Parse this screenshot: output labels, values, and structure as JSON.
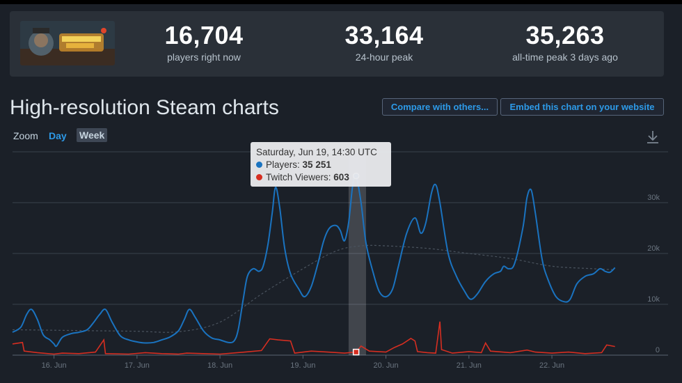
{
  "stats": {
    "current": {
      "value": "16,704",
      "label": "players right now"
    },
    "peak24": {
      "value": "33,164",
      "label": "24-hour peak"
    },
    "alltime": {
      "value": "35,263",
      "label": "all-time peak 3 days ago"
    }
  },
  "heading": "High-resolution Steam charts",
  "buttons": {
    "compare": "Compare with others...",
    "embed": "Embed this chart on your website"
  },
  "zoom": {
    "label": "Zoom",
    "day": "Day",
    "week": "Week"
  },
  "tooltip": {
    "date": "Saturday, Jun 19, 14:30 UTC",
    "players_label": "Players:",
    "players_value": "35 251",
    "twitch_label": "Twitch Viewers:",
    "twitch_value": "603"
  },
  "colors": {
    "players": "#1a73c0",
    "twitch": "#d62e21",
    "average": "#4a535e",
    "highlight": "#ffffff"
  },
  "icons": {
    "download": "download-icon"
  },
  "chart_data": {
    "type": "line",
    "xlim": [
      15.5,
      23.4
    ],
    "ylim": [
      0,
      40000
    ],
    "x_ticks": [
      16,
      17,
      18,
      19,
      20,
      21,
      22
    ],
    "x_tick_labels": [
      "16. Jun",
      "17. Jun",
      "18. Jun",
      "19. Jun",
      "20. Jun",
      "21. Jun",
      "22. Jun"
    ],
    "y_ticks": [
      0,
      10000,
      20000,
      30000
    ],
    "y_tick_labels": [
      "0",
      "10k",
      "20k",
      "30k"
    ],
    "grid": true,
    "highlight": {
      "x": 19.6,
      "x_band": [
        19.55,
        19.76
      ],
      "players": 35251,
      "twitch": 603
    },
    "series": [
      {
        "name": "Players",
        "points": [
          [
            15.5,
            4500
          ],
          [
            15.6,
            5500
          ],
          [
            15.67,
            8000
          ],
          [
            15.73,
            9000
          ],
          [
            15.8,
            7000
          ],
          [
            15.87,
            4000
          ],
          [
            15.95,
            3000
          ],
          [
            16.0,
            2200
          ],
          [
            16.03,
            1800
          ],
          [
            16.1,
            3500
          ],
          [
            16.2,
            4200
          ],
          [
            16.3,
            4500
          ],
          [
            16.4,
            5000
          ],
          [
            16.48,
            6500
          ],
          [
            16.55,
            8000
          ],
          [
            16.62,
            9000
          ],
          [
            16.7,
            6500
          ],
          [
            16.8,
            3800
          ],
          [
            16.9,
            3000
          ],
          [
            17.0,
            2600
          ],
          [
            17.1,
            2400
          ],
          [
            17.2,
            2500
          ],
          [
            17.3,
            3000
          ],
          [
            17.4,
            3600
          ],
          [
            17.5,
            4800
          ],
          [
            17.57,
            7000
          ],
          [
            17.63,
            9000
          ],
          [
            17.7,
            7500
          ],
          [
            17.8,
            4800
          ],
          [
            17.9,
            3400
          ],
          [
            18.0,
            3000
          ],
          [
            18.1,
            2500
          ],
          [
            18.17,
            2800
          ],
          [
            18.22,
            5000
          ],
          [
            18.28,
            11000
          ],
          [
            18.33,
            15500
          ],
          [
            18.4,
            17000
          ],
          [
            18.47,
            16500
          ],
          [
            18.52,
            17500
          ],
          [
            18.58,
            22000
          ],
          [
            18.63,
            28000
          ],
          [
            18.67,
            33000
          ],
          [
            18.72,
            29000
          ],
          [
            18.78,
            21000
          ],
          [
            18.85,
            16000
          ],
          [
            18.95,
            13000
          ],
          [
            19.02,
            11500
          ],
          [
            19.1,
            13500
          ],
          [
            19.18,
            18000
          ],
          [
            19.25,
            22500
          ],
          [
            19.32,
            25000
          ],
          [
            19.4,
            25500
          ],
          [
            19.45,
            24500
          ],
          [
            19.5,
            22500
          ],
          [
            19.55,
            26000
          ],
          [
            19.6,
            33500
          ],
          [
            19.64,
            35251
          ],
          [
            19.7,
            30000
          ],
          [
            19.76,
            22000
          ],
          [
            19.85,
            16000
          ],
          [
            19.92,
            12500
          ],
          [
            20.0,
            11500
          ],
          [
            20.08,
            13000
          ],
          [
            20.15,
            17500
          ],
          [
            20.25,
            24000
          ],
          [
            20.35,
            27000
          ],
          [
            20.42,
            24000
          ],
          [
            20.48,
            26000
          ],
          [
            20.55,
            32000
          ],
          [
            20.6,
            33500
          ],
          [
            20.65,
            30000
          ],
          [
            20.75,
            20000
          ],
          [
            20.85,
            15500
          ],
          [
            20.95,
            12500
          ],
          [
            21.02,
            11000
          ],
          [
            21.1,
            12000
          ],
          [
            21.2,
            14500
          ],
          [
            21.3,
            16000
          ],
          [
            21.38,
            16500
          ],
          [
            21.42,
            17500
          ],
          [
            21.48,
            17000
          ],
          [
            21.55,
            18000
          ],
          [
            21.65,
            25000
          ],
          [
            21.7,
            31000
          ],
          [
            21.75,
            32500
          ],
          [
            21.8,
            28000
          ],
          [
            21.88,
            19000
          ],
          [
            21.95,
            15000
          ],
          [
            22.05,
            11500
          ],
          [
            22.15,
            10500
          ],
          [
            22.22,
            11000
          ],
          [
            22.3,
            14000
          ],
          [
            22.4,
            15500
          ],
          [
            22.5,
            16000
          ],
          [
            22.58,
            17000
          ],
          [
            22.64,
            16500
          ],
          [
            22.7,
            16300
          ],
          [
            22.76,
            17200
          ]
        ]
      },
      {
        "name": "Twitch Viewers",
        "points": [
          [
            15.5,
            2200
          ],
          [
            15.62,
            2500
          ],
          [
            15.64,
            800
          ],
          [
            15.8,
            500
          ],
          [
            16.0,
            200
          ],
          [
            16.1,
            400
          ],
          [
            16.3,
            300
          ],
          [
            16.5,
            600
          ],
          [
            16.6,
            3000
          ],
          [
            16.62,
            300
          ],
          [
            16.9,
            200
          ],
          [
            17.1,
            500
          ],
          [
            17.3,
            300
          ],
          [
            17.5,
            200
          ],
          [
            17.6,
            400
          ],
          [
            17.8,
            300
          ],
          [
            18.0,
            200
          ],
          [
            18.3,
            600
          ],
          [
            18.5,
            900
          ],
          [
            18.6,
            3200
          ],
          [
            18.7,
            3000
          ],
          [
            18.85,
            2800
          ],
          [
            18.9,
            400
          ],
          [
            19.1,
            800
          ],
          [
            19.3,
            600
          ],
          [
            19.5,
            400
          ],
          [
            19.64,
            603
          ],
          [
            19.7,
            1800
          ],
          [
            19.8,
            800
          ],
          [
            20.0,
            600
          ],
          [
            20.1,
            1500
          ],
          [
            20.2,
            2200
          ],
          [
            20.3,
            3300
          ],
          [
            20.35,
            2800
          ],
          [
            20.38,
            700
          ],
          [
            20.5,
            500
          ],
          [
            20.6,
            400
          ],
          [
            20.65,
            6600
          ],
          [
            20.67,
            1100
          ],
          [
            20.8,
            400
          ],
          [
            21.0,
            700
          ],
          [
            21.15,
            500
          ],
          [
            21.2,
            2400
          ],
          [
            21.26,
            800
          ],
          [
            21.5,
            500
          ],
          [
            21.7,
            1000
          ],
          [
            21.8,
            600
          ],
          [
            22.0,
            400
          ],
          [
            22.2,
            600
          ],
          [
            22.4,
            300
          ],
          [
            22.6,
            500
          ],
          [
            22.66,
            2000
          ],
          [
            22.76,
            1700
          ]
        ]
      },
      {
        "name": "average",
        "points": [
          [
            15.5,
            5000
          ],
          [
            16.0,
            4900
          ],
          [
            16.5,
            4800
          ],
          [
            17.0,
            4700
          ],
          [
            17.5,
            4600
          ],
          [
            18.0,
            6500
          ],
          [
            18.5,
            12000
          ],
          [
            19.0,
            17000
          ],
          [
            19.4,
            20500
          ],
          [
            19.7,
            21500
          ],
          [
            20.0,
            21500
          ],
          [
            20.5,
            21000
          ],
          [
            21.0,
            20000
          ],
          [
            21.5,
            19000
          ],
          [
            22.0,
            17500
          ],
          [
            22.5,
            17000
          ],
          [
            22.76,
            16800
          ]
        ]
      }
    ]
  }
}
